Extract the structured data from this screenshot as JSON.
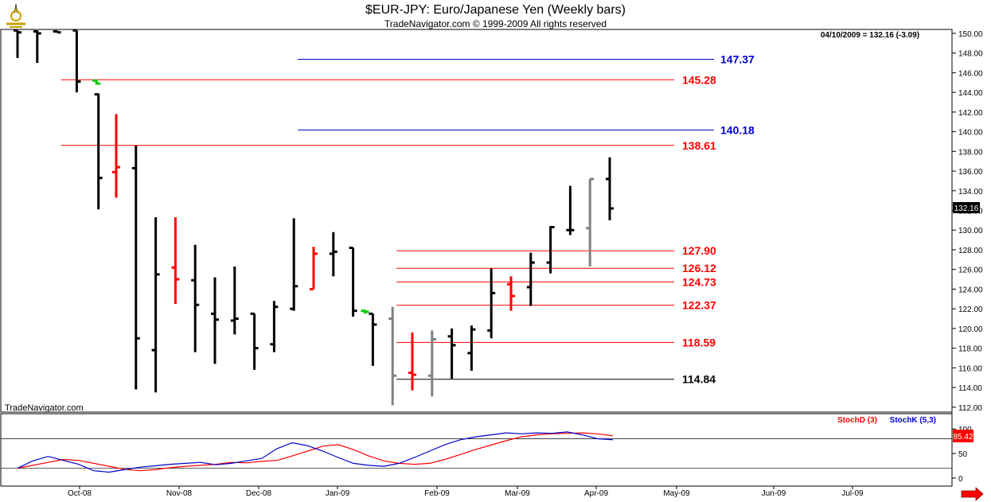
{
  "header": {
    "title": "$EUR-JPY:  Euro/Japanese Yen  (Weekly bars)",
    "copyright": "TradeNavigator.com © 1999-2009 All rights reserved",
    "readout": "04/10/2009 = 132.16 (-3.09)",
    "watermark": "TradeNavigator.com",
    "last_price_tag": "132.16"
  },
  "colors": {
    "up_bar": "#000000",
    "down_bar": "#ff0000",
    "neutral_bar": "#808080",
    "red_level": "#ff0000",
    "blue_level": "#0000cc",
    "stoch_d": "#ff0000",
    "stoch_k": "#0000cc"
  },
  "chart_data": [
    {
      "type": "ohlc",
      "title": "$EUR-JPY:  Euro/Japanese Yen  (Weekly bars)",
      "x_labels": [
        "Oct-08",
        "Nov-08",
        "Dec-08",
        "Jan-09",
        "Feb-09",
        "Mar-09",
        "Apr-09",
        "May-09",
        "Jun-09",
        "Jul-09"
      ],
      "y_ticks": [
        "150.00",
        "148.00",
        "146.00",
        "144.00",
        "142.00",
        "140.00",
        "138.00",
        "136.00",
        "134.00",
        "132.00",
        "130.00",
        "128.00",
        "126.00",
        "124.00",
        "122.00",
        "120.00",
        "118.00",
        "116.00",
        "114.00",
        "112.00"
      ],
      "ylim": [
        111.5,
        150.4
      ],
      "bars": [
        {
          "week": 0,
          "o": 150.3,
          "h": 150.3,
          "l": 147.5,
          "c": 150.1,
          "color": "up"
        },
        {
          "week": 1,
          "o": 150.2,
          "h": 150.3,
          "l": 147.0,
          "c": 150.0,
          "color": "up"
        },
        {
          "week": 2,
          "o": 150.2,
          "h": 150.3,
          "l": 150.2,
          "c": 150.1,
          "color": "up"
        },
        {
          "week": 3,
          "o": 150.3,
          "h": 150.3,
          "l": 144.0,
          "c": 145.1,
          "color": "up"
        },
        {
          "week": 4,
          "o": 145.2,
          "h": 145.3,
          "l": 144.8,
          "c": 144.9,
          "color": "green"
        },
        {
          "week": 4.1,
          "o": 143.8,
          "h": 143.9,
          "l": 132.1,
          "c": 135.3,
          "color": "up"
        },
        {
          "week": 5,
          "o": 135.9,
          "h": 141.8,
          "l": 133.3,
          "c": 136.4,
          "color": "down"
        },
        {
          "week": 6,
          "o": 136.3,
          "h": 138.6,
          "l": 113.8,
          "c": 119.0,
          "color": "up"
        },
        {
          "week": 7,
          "o": 117.8,
          "h": 131.3,
          "l": 113.5,
          "c": 125.5,
          "color": "up"
        },
        {
          "week": 8,
          "o": 126.2,
          "h": 131.3,
          "l": 122.5,
          "c": 125.0,
          "color": "down"
        },
        {
          "week": 9,
          "o": 124.9,
          "h": 128.5,
          "l": 117.6,
          "c": 122.4,
          "color": "up"
        },
        {
          "week": 10,
          "o": 121.5,
          "h": 125.2,
          "l": 116.4,
          "c": 120.9,
          "color": "up"
        },
        {
          "week": 11,
          "o": 120.8,
          "h": 126.3,
          "l": 119.4,
          "c": 121.0,
          "color": "up"
        },
        {
          "week": 12,
          "o": 121.5,
          "h": 121.5,
          "l": 115.8,
          "c": 118.0,
          "color": "up"
        },
        {
          "week": 13,
          "o": 118.4,
          "h": 122.8,
          "l": 117.6,
          "c": 122.2,
          "color": "up"
        },
        {
          "week": 14,
          "o": 122.0,
          "h": 131.2,
          "l": 121.8,
          "c": 124.3,
          "color": "up"
        },
        {
          "week": 15,
          "o": 124.0,
          "h": 128.3,
          "l": 124.0,
          "c": 127.6,
          "color": "down"
        },
        {
          "week": 16,
          "o": 127.6,
          "h": 129.8,
          "l": 125.3,
          "c": 127.8,
          "color": "up"
        },
        {
          "week": 17,
          "o": 128.2,
          "h": 128.2,
          "l": 121.2,
          "c": 121.8,
          "color": "up"
        },
        {
          "week": 17.6,
          "o": 121.8,
          "h": 121.9,
          "l": 121.5,
          "c": 121.7,
          "color": "green"
        },
        {
          "week": 18,
          "o": 121.5,
          "h": 121.5,
          "l": 116.2,
          "c": 120.4,
          "color": "up"
        },
        {
          "week": 19,
          "o": 121.0,
          "h": 122.2,
          "l": 112.2,
          "c": 115.2,
          "color": "neutral"
        },
        {
          "week": 20,
          "o": 115.5,
          "h": 119.6,
          "l": 113.7,
          "c": 115.3,
          "color": "down"
        },
        {
          "week": 21,
          "o": 115.2,
          "h": 119.8,
          "l": 113.1,
          "c": 118.9,
          "color": "neutral"
        },
        {
          "week": 22,
          "o": 119.2,
          "h": 120.0,
          "l": 114.9,
          "c": 118.3,
          "color": "up"
        },
        {
          "week": 23,
          "o": 117.5,
          "h": 120.3,
          "l": 115.7,
          "c": 119.9,
          "color": "up"
        },
        {
          "week": 24,
          "o": 119.8,
          "h": 126.1,
          "l": 119.0,
          "c": 123.6,
          "color": "up"
        },
        {
          "week": 25,
          "o": 124.5,
          "h": 125.3,
          "l": 121.8,
          "c": 123.3,
          "color": "down"
        },
        {
          "week": 26,
          "o": 124.2,
          "h": 127.7,
          "l": 122.3,
          "c": 126.7,
          "color": "up"
        },
        {
          "week": 27,
          "o": 126.7,
          "h": 130.4,
          "l": 125.6,
          "c": 130.3,
          "color": "up"
        },
        {
          "week": 28,
          "o": 130.0,
          "h": 134.5,
          "l": 129.5,
          "c": 130.0,
          "color": "up"
        },
        {
          "week": 29,
          "o": 130.2,
          "h": 135.2,
          "l": 126.3,
          "c": 135.2,
          "color": "neutral"
        },
        {
          "week": 30,
          "o": 135.2,
          "h": 137.4,
          "l": 131.0,
          "c": 132.2,
          "color": "up"
        }
      ],
      "levels": [
        {
          "value": 147.37,
          "label": "147.37",
          "color": "blue",
          "from_week": 14
        },
        {
          "value": 145.28,
          "label": "145.28",
          "color": "red",
          "from_week": 2
        },
        {
          "value": 140.18,
          "label": "140.18",
          "color": "blue",
          "from_week": 14
        },
        {
          "value": 138.61,
          "label": "138.61",
          "color": "red",
          "from_week": 2
        },
        {
          "value": 127.9,
          "label": "127.90",
          "color": "red",
          "from_week": 19
        },
        {
          "value": 126.12,
          "label": "126.12",
          "color": "red",
          "from_week": 19
        },
        {
          "value": 124.73,
          "label": "124.73",
          "color": "red",
          "from_week": 19
        },
        {
          "value": 122.37,
          "label": "122.37",
          "color": "red",
          "from_week": 19
        },
        {
          "value": 118.59,
          "label": "118.59",
          "color": "red",
          "from_week": 19
        },
        {
          "value": 114.84,
          "label": "114.84",
          "color": "black",
          "from_week": 19
        }
      ]
    },
    {
      "type": "line",
      "title": "StochD (3)   StochK (5,3)",
      "legend": [
        "StochD (3)",
        "StochK (5,3)"
      ],
      "y_ticks": [
        "100",
        "50",
        "0"
      ],
      "ylim": [
        -5,
        110
      ],
      "reference_lines": [
        80,
        20
      ],
      "readout_value": "85.42",
      "series": [
        {
          "name": "StochD (3)",
          "color": "red",
          "values": [
            20,
            26,
            32,
            38,
            36,
            30,
            24,
            18,
            15,
            17,
            21,
            24,
            26,
            28,
            32,
            31,
            34,
            36,
            45,
            55,
            65,
            68,
            58,
            45,
            35,
            30,
            28,
            30,
            38,
            48,
            58,
            67,
            76,
            84,
            88,
            90,
            91,
            92,
            90,
            86
          ]
        },
        {
          "name": "StochK (5,3)",
          "color": "blue",
          "values": [
            20,
            35,
            44,
            36,
            28,
            15,
            12,
            17,
            22,
            25,
            28,
            30,
            32,
            27,
            30,
            35,
            40,
            60,
            72,
            66,
            55,
            42,
            30,
            26,
            24,
            30,
            42,
            55,
            68,
            78,
            84,
            88,
            92,
            90,
            92,
            91,
            94,
            88,
            80,
            78
          ]
        }
      ]
    }
  ]
}
